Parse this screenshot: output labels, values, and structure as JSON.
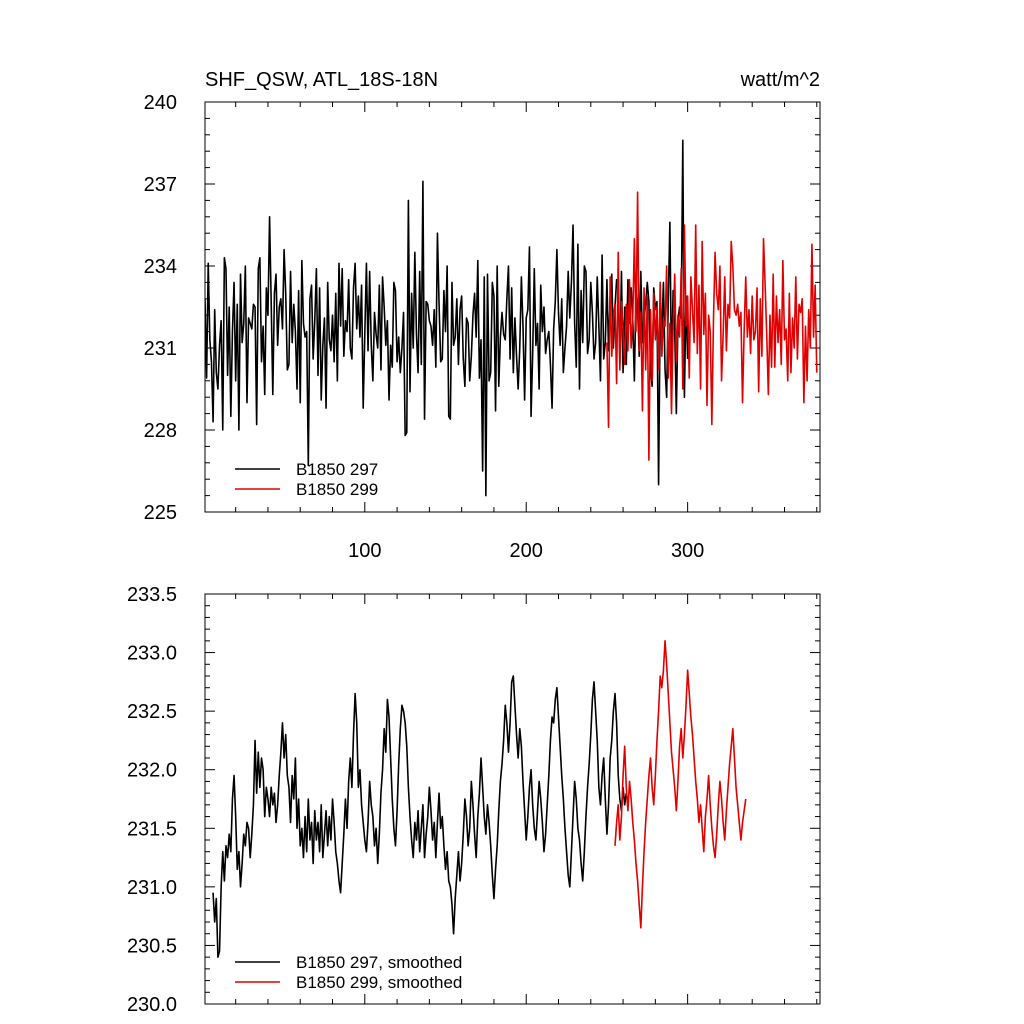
{
  "chart_data": [
    {
      "type": "line",
      "title": "SHF_QSW, ATL_18S-18N",
      "units": "watt/m^2",
      "xlim": [
        1,
        382
      ],
      "ylim": [
        225,
        240
      ],
      "x_ticks": [
        100,
        200,
        300
      ],
      "x_tick_labels": [
        "100",
        "200",
        "300"
      ],
      "y_ticks": [
        225,
        228,
        231,
        234,
        237,
        240
      ],
      "y_tick_labels": [
        "225",
        "228",
        "231",
        "234",
        "237",
        "240"
      ],
      "legend": [
        "B1850 297",
        "B1850 299"
      ],
      "legend_position": "bottom-left",
      "series": [
        {
          "name": "B1850 297",
          "color": "#000000",
          "x_start": 1,
          "values": [
            232.8,
            229.9,
            234.1,
            231.3,
            230.5,
            228.3,
            232.4,
            230.1,
            229.5,
            231.1,
            232.0,
            228.0,
            234.3,
            233.9,
            230.0,
            232.5,
            228.5,
            231.6,
            233.4,
            229.8,
            232.6,
            228.0,
            233.7,
            231.2,
            231.9,
            234.0,
            229.0,
            232.1,
            231.9,
            231.7,
            232.6,
            232.5,
            228.2,
            233.9,
            234.3,
            230.5,
            231.8,
            229.3,
            233.2,
            232.2,
            235.8,
            232.7,
            229.3,
            233.0,
            233.7,
            231.1,
            232.5,
            232.8,
            231.7,
            234.6,
            233.0,
            230.2,
            230.4,
            233.8,
            231.2,
            232.6,
            231.6,
            229.5,
            233.1,
            229.0,
            234.2,
            231.9,
            231.4,
            231.6,
            226.7,
            232.8,
            233.3,
            230.6,
            232.0,
            233.9,
            230.0,
            233.2,
            229.1,
            231.1,
            232.1,
            228.8,
            233.4,
            231.3,
            230.9,
            232.2,
            230.5,
            233.0,
            229.8,
            234.1,
            231.8,
            233.9,
            230.7,
            232.0,
            231.6,
            233.5,
            231.0,
            230.6,
            233.2,
            234.1,
            231.7,
            232.9,
            231.4,
            233.3,
            228.8,
            231.5,
            234.1,
            230.9,
            233.8,
            231.1,
            229.8,
            232.3,
            231.5,
            231.0,
            233.3,
            230.2,
            233.6,
            232.5,
            231.1,
            232.0,
            229.1,
            231.1,
            230.3,
            233.4,
            233.1,
            230.5,
            231.4,
            230.1,
            231.0,
            232.3,
            227.8,
            227.9,
            236.4,
            229.4,
            233.0,
            231.0,
            234.5,
            231.5,
            230.1,
            233.8,
            230.4,
            237.1,
            228.4,
            232.7,
            232.6,
            232.0,
            231.8,
            231.1,
            232.4,
            230.3,
            235.2,
            232.6,
            230.5,
            230.6,
            233.1,
            231.6,
            234.0,
            228.5,
            228.4,
            233.4,
            231.1,
            231.4,
            232.8,
            230.4,
            232.4,
            232.9,
            230.6,
            229.6,
            232.1,
            231.9,
            229.8,
            230.7,
            232.2,
            233.0,
            231.4,
            234.2,
            229.9,
            231.3,
            226.5,
            233.6,
            225.6,
            233.7,
            229.8,
            230.1,
            233.4,
            232.9,
            228.7,
            234.0,
            229.6,
            231.4,
            232.3,
            231.5,
            231.3,
            232.8,
            234.0,
            230.6,
            233.2,
            230.1,
            232.1,
            230.7,
            229.5,
            231.0,
            233.6,
            231.8,
            229.1,
            232.1,
            232.4,
            234.7,
            228.5,
            230.8,
            233.9,
            231.1,
            231.9,
            229.5,
            233.3,
            231.6,
            232.5,
            230.8,
            231.3,
            231.6,
            230.4,
            228.8,
            231.7,
            232.7,
            234.6,
            232.3,
            231.1,
            232.8,
            230.1,
            231.0,
            231.8,
            233.8,
            232.1,
            233.4,
            235.5,
            231.9,
            230.3,
            234.8,
            229.5,
            233.1,
            231.2,
            234.0,
            233.8,
            230.8,
            231.3,
            233.4,
            232.3,
            230.6,
            231.2,
            233.6,
            231.8,
            229.8,
            234.4,
            230.6,
            231.2,
            233.5,
            230.9,
            232.8,
            233.7,
            231.0,
            232.5,
            233.5,
            233.1,
            230.4,
            233.8,
            230.1,
            232.5,
            230.4,
            233.5,
            231.9,
            233.2,
            232.0,
            229.8,
            233.1,
            232.6,
            230.7,
            233.8,
            231.2,
            232.1,
            232.6,
            233.4,
            232.7,
            230.3,
            229.6,
            233.2,
            232.4,
            232.7,
            226.0,
            232.4,
            231.6,
            233.4,
            230.2,
            229.2,
            232.7,
            235.6,
            230.1,
            233.1,
            231.7,
            228.6,
            232.0,
            232.5,
            232.1,
            238.6,
            229.2,
            232.9,
            230.6
          ]
        },
        {
          "name": "B1850 299",
          "color": "#e00000",
          "x_start": 250,
          "values": [
            231.2,
            228.1,
            233.6,
            230.7,
            232.1,
            232.6,
            229.7,
            234.5,
            230.2,
            232.7,
            231.6,
            230.4,
            232.6,
            230.9,
            233.5,
            231.0,
            232.1,
            235.0,
            231.6,
            236.7,
            230.9,
            232.3,
            228.7,
            233.2,
            230.2,
            232.9,
            226.9,
            232.4,
            229.8,
            233.0,
            231.3,
            232.5,
            230.2,
            233.4,
            230.7,
            232.0,
            231.8,
            234.0,
            229.9,
            231.9,
            228.6,
            231.7,
            233.7,
            230.5,
            232.2,
            231.4,
            233.9,
            229.5,
            235.5,
            231.8,
            232.9,
            229.9,
            233.6,
            232.4,
            231.2,
            235.5,
            230.8,
            233.3,
            229.5,
            234.9,
            231.5,
            233.0,
            228.9,
            232.2,
            231.6,
            228.2,
            232.0,
            234.5,
            233.0,
            232.4,
            234.0,
            229.8,
            231.5,
            233.6,
            230.9,
            232.6,
            232.1,
            234.9,
            234.0,
            232.4,
            232.2,
            232.6,
            231.8,
            232.3,
            229.0,
            231.6,
            233.6,
            231.4,
            232.4,
            230.8,
            232.9,
            231.3,
            231.6,
            233.2,
            229.4,
            232.8,
            230.7,
            235.0,
            233.3,
            231.5,
            229.3,
            232.2,
            230.3,
            233.7,
            230.3,
            232.9,
            231.2,
            232.4,
            230.4,
            234.2,
            231.3,
            231.7,
            229.8,
            233.0,
            230.1,
            232.1,
            231.0,
            233.6,
            230.6,
            232.6,
            232.3,
            232.8,
            229.0,
            231.8,
            229.8,
            232.4,
            231.0,
            234.8,
            231.4,
            233.3,
            230.1
          ]
        }
      ]
    },
    {
      "type": "line",
      "xlim": [
        1,
        382
      ],
      "ylim": [
        230.0,
        233.5
      ],
      "x_ticks": [
        100,
        200,
        300
      ],
      "y_ticks": [
        230.0,
        230.5,
        231.0,
        231.5,
        232.0,
        232.5,
        233.0,
        233.5
      ],
      "y_tick_labels": [
        "230.0",
        "230.5",
        "231.0",
        "231.5",
        "232.0",
        "232.5",
        "233.0",
        "233.5"
      ],
      "legend": [
        "B1850 297, smoothed",
        "B1850 299, smoothed"
      ],
      "legend_position": "bottom-left",
      "series": [
        {
          "name": "B1850 297, smoothed",
          "color": "#000000",
          "x_start": 6,
          "values": [
            230.95,
            230.7,
            230.9,
            230.4,
            230.45,
            231.0,
            231.3,
            231.05,
            231.35,
            231.25,
            231.45,
            231.3,
            231.75,
            231.95,
            231.6,
            231.15,
            231.3,
            231.0,
            231.2,
            231.45,
            231.35,
            231.55,
            231.5,
            231.25,
            231.45,
            231.7,
            232.25,
            231.8,
            232.15,
            231.85,
            232.1,
            232.0,
            231.6,
            231.85,
            231.75,
            231.6,
            231.85,
            231.7,
            231.8,
            231.55,
            231.7,
            231.95,
            232.15,
            232.4,
            232.1,
            232.3,
            231.95,
            231.85,
            231.55,
            231.95,
            231.75,
            232.1,
            231.5,
            231.75,
            231.35,
            231.5,
            231.25,
            231.6,
            231.3,
            231.75,
            231.4,
            231.55,
            231.2,
            231.65,
            231.4,
            231.55,
            231.3,
            231.7,
            231.25,
            231.45,
            231.65,
            231.35,
            231.6,
            231.4,
            231.75,
            231.55,
            231.3,
            231.2,
            231.05,
            230.95,
            231.2,
            231.45,
            231.75,
            231.5,
            231.9,
            232.1,
            231.85,
            232.3,
            232.65,
            232.4,
            231.85,
            232.0,
            231.7,
            231.55,
            231.4,
            231.3,
            231.55,
            231.9,
            231.7,
            231.6,
            231.35,
            231.5,
            231.2,
            231.45,
            231.8,
            232.0,
            232.35,
            232.15,
            232.6,
            232.45,
            232.1,
            231.75,
            231.5,
            231.35,
            231.65,
            232.05,
            232.35,
            232.55,
            232.5,
            232.4,
            232.2,
            231.85,
            231.6,
            231.4,
            231.25,
            231.55,
            231.4,
            231.65,
            231.3,
            231.5,
            231.7,
            231.25,
            231.45,
            231.6,
            231.85,
            231.65,
            231.4,
            231.55,
            231.25,
            231.55,
            231.8,
            231.5,
            231.6,
            231.35,
            231.15,
            231.3,
            231.05,
            231.0,
            230.85,
            230.6,
            230.9,
            231.1,
            231.3,
            231.05,
            231.2,
            231.45,
            231.75,
            231.6,
            231.35,
            231.5,
            231.9,
            231.7,
            231.45,
            231.25,
            231.6,
            231.8,
            232.1,
            231.85,
            231.6,
            231.45,
            231.7,
            231.55,
            231.35,
            231.1,
            230.9,
            231.15,
            231.35,
            231.65,
            231.9,
            232.05,
            232.25,
            232.55,
            232.4,
            232.15,
            232.4,
            232.75,
            232.8,
            232.55,
            232.3,
            232.1,
            232.35,
            232.2,
            231.9,
            231.65,
            231.4,
            231.6,
            231.85,
            232.0,
            231.7,
            231.5,
            231.4,
            231.65,
            231.9,
            231.75,
            231.55,
            231.3,
            231.45,
            231.7,
            231.95,
            232.25,
            232.45,
            232.4,
            232.6,
            232.7,
            232.45,
            232.2,
            231.95,
            231.75,
            231.5,
            231.3,
            231.1,
            231.0,
            231.3,
            231.6,
            231.9,
            231.75,
            231.5,
            231.4,
            231.2,
            231.05,
            231.3,
            231.6,
            231.85,
            232.05,
            232.3,
            232.6,
            232.75,
            232.5,
            232.25,
            231.85,
            231.7,
            231.95,
            232.1,
            231.75,
            231.45,
            231.7,
            232.1,
            232.25,
            232.5,
            232.65,
            232.4,
            231.95,
            231.75,
            231.65,
            231.85,
            231.7,
            231.8
          ]
        },
        {
          "name": "B1850 299, smoothed",
          "color": "#e00000",
          "x_start": 255,
          "values": [
            231.35,
            231.55,
            231.7,
            231.4,
            231.6,
            231.95,
            232.2,
            231.85,
            231.65,
            231.9,
            231.75,
            231.55,
            231.4,
            231.2,
            231.05,
            230.85,
            230.65,
            231.0,
            231.3,
            231.55,
            231.75,
            231.95,
            232.1,
            231.85,
            231.7,
            231.95,
            232.25,
            232.5,
            232.8,
            232.7,
            232.85,
            233.1,
            232.9,
            232.65,
            232.4,
            232.15,
            232.0,
            231.85,
            231.65,
            231.9,
            232.2,
            232.35,
            232.1,
            232.3,
            232.55,
            232.85,
            232.65,
            232.45,
            232.3,
            232.1,
            231.9,
            231.75,
            231.55,
            231.7,
            231.5,
            231.3,
            231.6,
            231.75,
            231.95,
            231.7,
            231.5,
            231.35,
            231.25,
            231.45,
            231.7,
            231.9,
            231.75,
            231.55,
            231.4,
            231.65,
            231.85,
            232.05,
            232.2,
            232.35,
            232.1,
            231.85,
            231.7,
            231.55,
            231.4,
            231.55,
            231.65,
            231.75
          ]
        }
      ]
    }
  ]
}
